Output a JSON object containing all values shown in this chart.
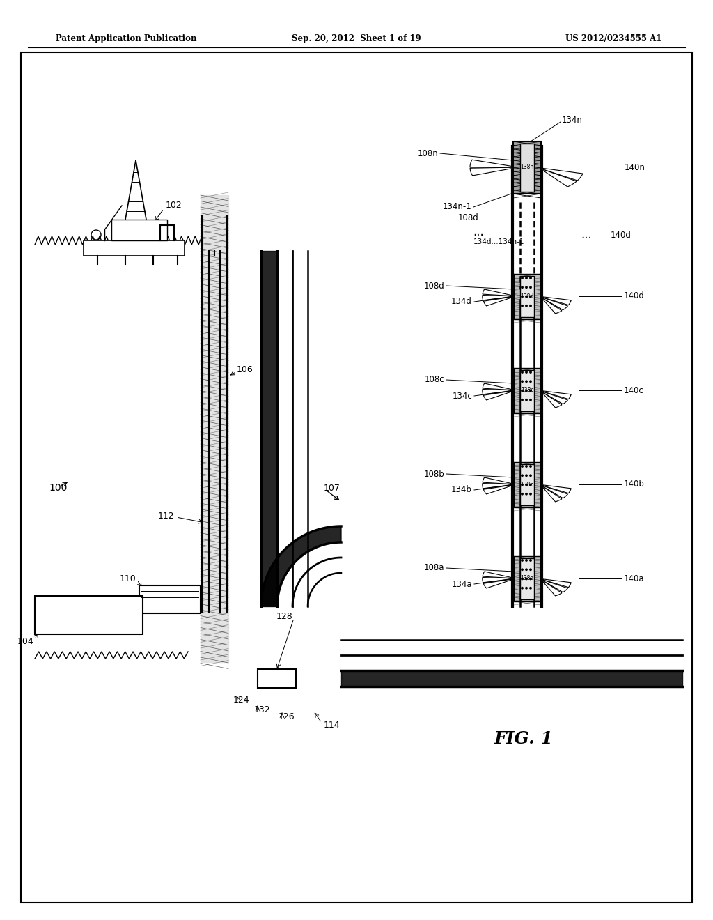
{
  "header_left": "Patent Application Publication",
  "header_center": "Sep. 20, 2012  Sheet 1 of 19",
  "header_right": "US 2012/0234555 A1",
  "fig_label": "FIG. 1",
  "bg_color": "#ffffff",
  "text_color": "#000000"
}
